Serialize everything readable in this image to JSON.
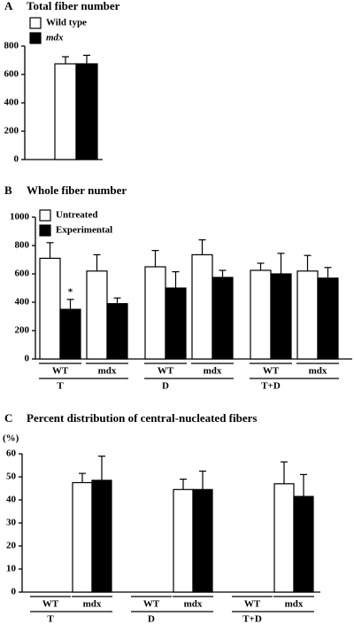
{
  "chart_data": [
    {
      "type": "bar",
      "panel": "A",
      "title": "Total fiber number",
      "series": [
        {
          "name": "Wild type",
          "color": "#ffffff",
          "values": [
            675
          ],
          "errors": [
            50
          ]
        },
        {
          "name": "mdx",
          "color": "#000000",
          "values": [
            675
          ],
          "errors": [
            60
          ]
        }
      ],
      "ylim": [
        0,
        800
      ],
      "yticks": [
        0,
        200,
        400,
        600,
        800
      ]
    },
    {
      "type": "bar",
      "panel": "B",
      "title": "Whole fiber number",
      "categories": [
        "WT",
        "mdx",
        "WT",
        "mdx",
        "WT",
        "mdx"
      ],
      "groups": [
        "T",
        "D",
        "T+D"
      ],
      "series": [
        {
          "name": "Untreated",
          "color": "#ffffff",
          "values": [
            710,
            620,
            650,
            735,
            625,
            620
          ],
          "errors": [
            110,
            115,
            115,
            105,
            50,
            110
          ]
        },
        {
          "name": "Experimental",
          "color": "#000000",
          "values": [
            350,
            390,
            500,
            575,
            600,
            570
          ],
          "errors": [
            70,
            40,
            115,
            50,
            145,
            75
          ],
          "significance": [
            "*",
            null,
            null,
            null,
            null,
            null
          ]
        }
      ],
      "ylim": [
        0,
        1000
      ],
      "yticks": [
        0,
        200,
        400,
        600,
        800,
        1000
      ]
    },
    {
      "type": "bar",
      "panel": "C",
      "title": "Percent distribution of central-nucleated fibers",
      "ylabel": "(%)",
      "categories": [
        "WT",
        "mdx",
        "WT",
        "mdx",
        "WT",
        "mdx"
      ],
      "groups": [
        "T",
        "D",
        "T+D"
      ],
      "series": [
        {
          "color": "#ffffff",
          "values": [
            null,
            47.5,
            null,
            44.5,
            null,
            47
          ],
          "errors": [
            null,
            4,
            null,
            4.5,
            null,
            9.5
          ]
        },
        {
          "color": "#000000",
          "values": [
            null,
            48.5,
            null,
            44.5,
            null,
            41.5
          ],
          "errors": [
            null,
            10.5,
            null,
            8,
            null,
            9.5
          ]
        }
      ],
      "ylim": [
        0,
        60
      ],
      "yticks": [
        0,
        10,
        20,
        30,
        40,
        50,
        60
      ]
    }
  ]
}
